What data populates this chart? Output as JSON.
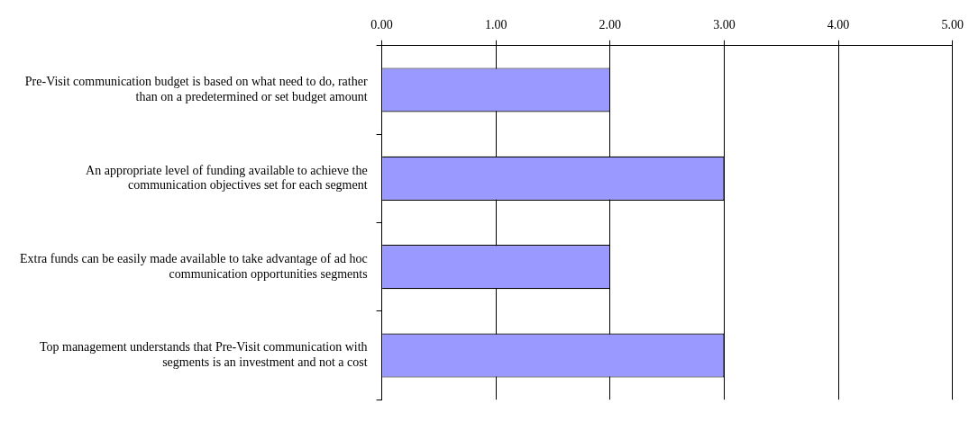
{
  "chart_data": {
    "type": "bar",
    "orientation": "horizontal",
    "categories": [
      "Pre-Visit communication budget is based on what need to do, rather than on a predetermined or set budget amount",
      "An appropriate level of funding available to achieve the communication objectives set for each segment",
      "Extra funds can be easily made available to take advantage of ad hoc communication opportunities segments",
      "Top management understands that Pre-Visit communication with segments is an investment and not a cost"
    ],
    "values": [
      2,
      3,
      2,
      3
    ],
    "color": "#9999ff",
    "xlim": [
      0,
      5
    ],
    "xticks": [
      {
        "value": 0,
        "label": "0.00"
      },
      {
        "value": 1,
        "label": "1.00"
      },
      {
        "value": 2,
        "label": "2.00"
      },
      {
        "value": 3,
        "label": "3.00"
      },
      {
        "value": 4,
        "label": "4.00"
      },
      {
        "value": 5,
        "label": "5.00"
      }
    ],
    "grid": "x",
    "legend": false
  }
}
